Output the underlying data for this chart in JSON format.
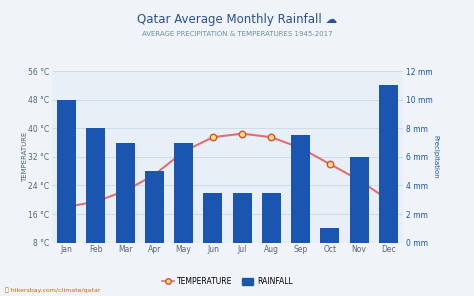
{
  "title": "Qatar Average Monthly Rainfall ☁",
  "subtitle": "AVERAGE PRECIPITATION & TEMPERATURES 1945-2017",
  "months": [
    "Jan",
    "Feb",
    "Mar",
    "Apr",
    "May",
    "Jun",
    "Jul",
    "Aug",
    "Sep",
    "Oct",
    "Nov",
    "Dec"
  ],
  "rainfall_mm": [
    10.0,
    8.0,
    7.0,
    5.0,
    7.0,
    3.5,
    3.5,
    3.5,
    7.5,
    1.0,
    6.0,
    11.0
  ],
  "temperature_c": [
    18.0,
    19.5,
    22.5,
    27.0,
    33.5,
    37.5,
    38.5,
    37.5,
    34.5,
    30.0,
    25.5,
    20.0
  ],
  "bar_color": "#1a56b0",
  "line_color": "#e07070",
  "marker_face": "#f5e060",
  "marker_edge": "#d05050",
  "bg_color": "#f0f4f8",
  "plot_bg_color": "#e8eff7",
  "grid_color": "#c8d8e8",
  "title_color": "#2a5090",
  "subtitle_color": "#7090a0",
  "left_tick_color": "#556677",
  "right_tick_color": "#1a56b0",
  "xtick_color": "#556677",
  "left_ylabel": "TEMPERATURE",
  "right_ylabel": "Precipitation",
  "left_yticks": [
    8,
    16,
    24,
    32,
    40,
    48,
    56
  ],
  "left_ylim": [
    8,
    56
  ],
  "right_yticks": [
    0,
    2,
    4,
    6,
    8,
    10,
    12
  ],
  "right_ylim": [
    0,
    12
  ],
  "watermark": "hikersbay.com/climate/qatar",
  "legend_temp": "TEMPERATURE",
  "legend_rain": "RAINFALL"
}
